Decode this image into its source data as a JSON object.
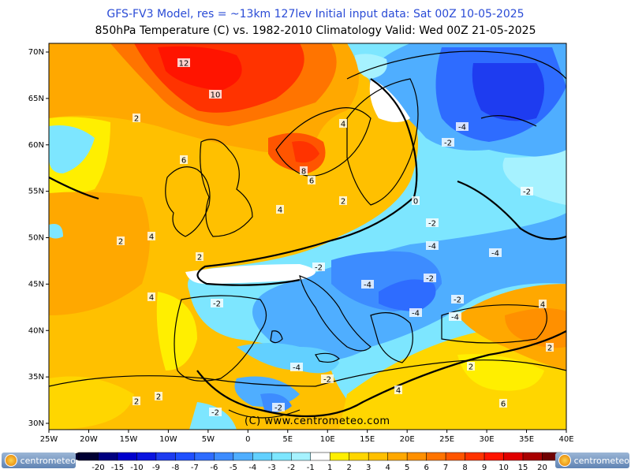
{
  "title_line1": "GFS-FV3 Model, res = ~13km 127lev    Initial input data: Sat 00Z 10-05-2025",
  "title_line2": "850hPa Temperature (C) vs. 1982-2010 Climatology  Valid: Wed 00Z 21-05-2025",
  "credit": "(C) www.centrometeo.com",
  "logo_left": "centrometeo",
  "logo_right": "centrometeo",
  "lon_labels": [
    "25W",
    "20W",
    "15W",
    "10W",
    "5W",
    "0",
    "5E",
    "10E",
    "15E",
    "20E",
    "25E",
    "30E",
    "35E",
    "40E"
  ],
  "lat_labels": [
    "70N",
    "65N",
    "60N",
    "55N",
    "50N",
    "45N",
    "40N",
    "35N",
    "30N"
  ],
  "contour_labels": [
    "12",
    "10",
    "2",
    "6",
    "8",
    "6",
    "4",
    "2",
    "0",
    "4",
    "2",
    "4",
    "2",
    "4",
    "-2",
    "-4",
    "-2",
    "-2",
    "-2",
    "-4",
    "-4",
    "-4",
    "-4",
    "-2",
    "-2",
    "-4",
    "-2",
    "-2",
    "-4",
    "-2",
    "-2",
    "4",
    "2",
    "2",
    "4",
    "6",
    "2",
    "2"
  ],
  "colorbar": {
    "labels": [
      "-20",
      "-15",
      "-10",
      "-9",
      "-8",
      "-7",
      "-6",
      "-5",
      "-4",
      "-3",
      "-2",
      "-1",
      "1",
      "2",
      "3",
      "4",
      "5",
      "6",
      "7",
      "8",
      "9",
      "10",
      "15",
      "20"
    ],
    "colors": [
      "#000033",
      "#000080",
      "#0000cc",
      "#0a14e0",
      "#1e3cf0",
      "#2050ff",
      "#2e6cff",
      "#3d8cff",
      "#4faeff",
      "#62d0ff",
      "#7de6ff",
      "#a6f2ff",
      "#ffffff",
      "#ffef00",
      "#ffd600",
      "#ffc000",
      "#ffa800",
      "#ff9000",
      "#ff7400",
      "#ff5500",
      "#ff3300",
      "#ff1400",
      "#e00000",
      "#a80000",
      "#700000"
    ]
  }
}
